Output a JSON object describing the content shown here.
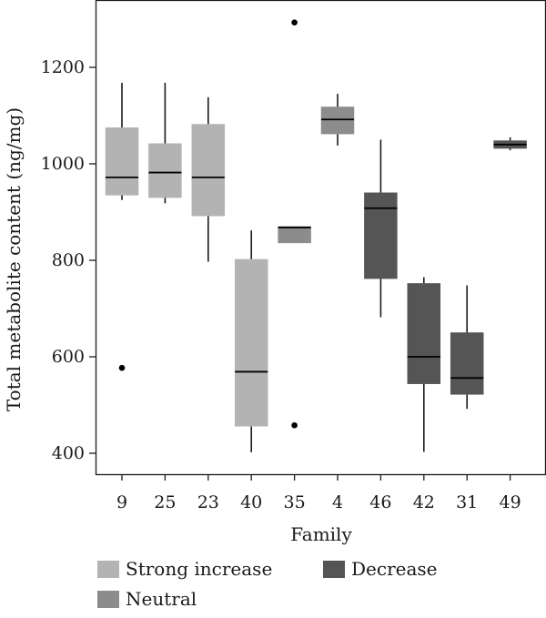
{
  "chart_data": {
    "type": "box",
    "title": "",
    "xlabel": "Family",
    "ylabel": "Total metabolite content (ng/mg)",
    "ylim": [
      355,
      1340
    ],
    "yticks": [
      400,
      600,
      800,
      1000,
      1200
    ],
    "grid": false,
    "legend_position": "bottom",
    "colors": {
      "Strong increase": "#b3b3b3",
      "Neutral": "#8c8c8c",
      "Decrease": "#555555"
    },
    "legend": [
      "Strong increase",
      "Neutral",
      "Decrease"
    ],
    "categories": [
      "9",
      "25",
      "23",
      "40",
      "35",
      "4",
      "46",
      "42",
      "31",
      "49"
    ],
    "boxes": [
      {
        "family": "9",
        "group": "Strong increase",
        "whisker_low": 925,
        "q1": 935,
        "median": 972,
        "q3": 1075,
        "whisker_high": 1168,
        "outliers": [
          577
        ]
      },
      {
        "family": "25",
        "group": "Strong increase",
        "whisker_low": 918,
        "q1": 930,
        "median": 982,
        "q3": 1042,
        "whisker_high": 1168,
        "outliers": []
      },
      {
        "family": "23",
        "group": "Strong increase",
        "whisker_low": 797,
        "q1": 892,
        "median": 972,
        "q3": 1082,
        "whisker_high": 1138,
        "outliers": []
      },
      {
        "family": "40",
        "group": "Strong increase",
        "whisker_low": 402,
        "q1": 456,
        "median": 569,
        "q3": 802,
        "whisker_high": 862,
        "outliers": []
      },
      {
        "family": "35",
        "group": "Neutral",
        "whisker_low": 836,
        "q1": 836,
        "median": 868,
        "q3": 870,
        "whisker_high": 870,
        "outliers": [
          1293,
          458
        ]
      },
      {
        "family": "4",
        "group": "Neutral",
        "whisker_low": 1038,
        "q1": 1062,
        "median": 1092,
        "q3": 1118,
        "whisker_high": 1145,
        "outliers": []
      },
      {
        "family": "46",
        "group": "Decrease",
        "whisker_low": 682,
        "q1": 762,
        "median": 908,
        "q3": 940,
        "whisker_high": 1050,
        "outliers": []
      },
      {
        "family": "42",
        "group": "Decrease",
        "whisker_low": 403,
        "q1": 544,
        "median": 600,
        "q3": 752,
        "whisker_high": 765,
        "outliers": []
      },
      {
        "family": "31",
        "group": "Decrease",
        "whisker_low": 492,
        "q1": 522,
        "median": 556,
        "q3": 650,
        "whisker_high": 748,
        "outliers": []
      },
      {
        "family": "49",
        "group": "Decrease",
        "whisker_low": 1028,
        "q1": 1032,
        "median": 1040,
        "q3": 1048,
        "whisker_high": 1055,
        "outliers": []
      }
    ]
  }
}
